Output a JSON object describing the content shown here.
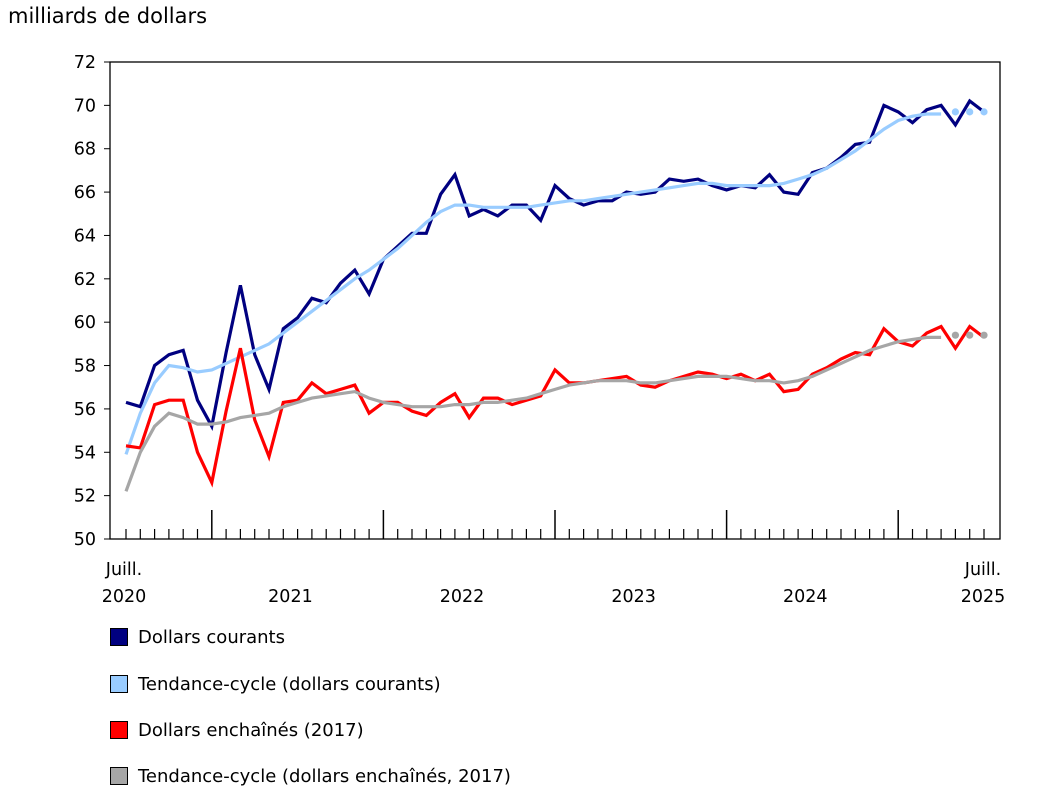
{
  "chart_data": {
    "type": "line",
    "ylabel": "milliards de dollars",
    "ylim": [
      50,
      72
    ],
    "yticks": [
      50,
      52,
      54,
      56,
      58,
      60,
      62,
      64,
      66,
      68,
      70,
      72
    ],
    "x_start": "juillet 2020",
    "x_end": "juillet 2025",
    "x_labels": [
      {
        "month_index": 0,
        "line1": "Juill.",
        "line2": "2020"
      },
      {
        "month_index": 12,
        "line1": "",
        "line2": "2021"
      },
      {
        "month_index": 24,
        "line1": "",
        "line2": "2022"
      },
      {
        "month_index": 36,
        "line1": "",
        "line2": "2023"
      },
      {
        "month_index": 48,
        "line1": "",
        "line2": "2024"
      },
      {
        "month_index": 60,
        "line1": "Juill.",
        "line2": "2025"
      }
    ],
    "series": [
      {
        "name": "Dollars courants",
        "color": "#000080",
        "values": [
          56.3,
          56.1,
          58.0,
          58.5,
          58.7,
          56.4,
          55.2,
          58.6,
          61.7,
          58.5,
          56.9,
          59.7,
          60.2,
          61.1,
          60.9,
          61.8,
          62.4,
          61.3,
          62.9,
          63.5,
          64.1,
          64.1,
          65.9,
          66.8,
          64.9,
          65.2,
          64.9,
          65.4,
          65.4,
          64.7,
          66.3,
          65.7,
          65.4,
          65.6,
          65.6,
          66.0,
          65.9,
          66.0,
          66.6,
          66.5,
          66.6,
          66.3,
          66.1,
          66.3,
          66.2,
          66.8,
          66.0,
          65.9,
          66.9,
          67.1,
          67.6,
          68.2,
          68.3,
          70.0,
          69.7,
          69.2,
          69.8,
          70.0,
          69.1,
          70.2,
          69.7
        ],
        "dotted_from_index": null
      },
      {
        "name": "Tendance-cycle (dollars courants)",
        "color": "#99ccff",
        "values": [
          53.9,
          55.8,
          57.2,
          58.0,
          57.9,
          57.7,
          57.8,
          58.1,
          58.4,
          58.7,
          59.0,
          59.5,
          60.0,
          60.5,
          61.0,
          61.5,
          62.0,
          62.4,
          62.9,
          63.4,
          64.0,
          64.6,
          65.1,
          65.4,
          65.4,
          65.3,
          65.3,
          65.3,
          65.3,
          65.4,
          65.5,
          65.6,
          65.6,
          65.7,
          65.8,
          65.9,
          66.0,
          66.1,
          66.2,
          66.3,
          66.4,
          66.4,
          66.3,
          66.3,
          66.3,
          66.3,
          66.4,
          66.6,
          66.8,
          67.1,
          67.5,
          67.9,
          68.4,
          68.9,
          69.3,
          69.5,
          69.6,
          69.6,
          69.7,
          69.7,
          69.7
        ],
        "dotted_from_index": 57
      },
      {
        "name": "Dollars enchaînés (2017)",
        "color": "#ff0000",
        "values": [
          54.3,
          54.2,
          56.2,
          56.4,
          56.4,
          54.0,
          52.6,
          55.9,
          58.8,
          55.5,
          53.8,
          56.3,
          56.4,
          57.2,
          56.7,
          56.9,
          57.1,
          55.8,
          56.3,
          56.3,
          55.9,
          55.7,
          56.3,
          56.7,
          55.6,
          56.5,
          56.5,
          56.2,
          56.4,
          56.6,
          57.8,
          57.2,
          57.2,
          57.3,
          57.4,
          57.5,
          57.1,
          57.0,
          57.3,
          57.5,
          57.7,
          57.6,
          57.4,
          57.6,
          57.3,
          57.6,
          56.8,
          56.9,
          57.6,
          57.9,
          58.3,
          58.6,
          58.5,
          59.7,
          59.1,
          58.9,
          59.5,
          59.8,
          58.8,
          59.8,
          59.3
        ],
        "dotted_from_index": null
      },
      {
        "name": "Tendance-cycle (dollars enchaînés, 2017)",
        "color": "#a6a6a6",
        "values": [
          52.2,
          54.0,
          55.2,
          55.8,
          55.6,
          55.3,
          55.3,
          55.4,
          55.6,
          55.7,
          55.8,
          56.1,
          56.3,
          56.5,
          56.6,
          56.7,
          56.8,
          56.5,
          56.3,
          56.2,
          56.1,
          56.1,
          56.1,
          56.2,
          56.2,
          56.3,
          56.3,
          56.4,
          56.5,
          56.7,
          56.9,
          57.1,
          57.2,
          57.3,
          57.3,
          57.3,
          57.2,
          57.2,
          57.3,
          57.4,
          57.5,
          57.5,
          57.5,
          57.4,
          57.3,
          57.3,
          57.2,
          57.3,
          57.5,
          57.8,
          58.1,
          58.4,
          58.7,
          58.9,
          59.1,
          59.2,
          59.3,
          59.3,
          59.4,
          59.4,
          59.4
        ],
        "dotted_from_index": 57
      }
    ]
  }
}
